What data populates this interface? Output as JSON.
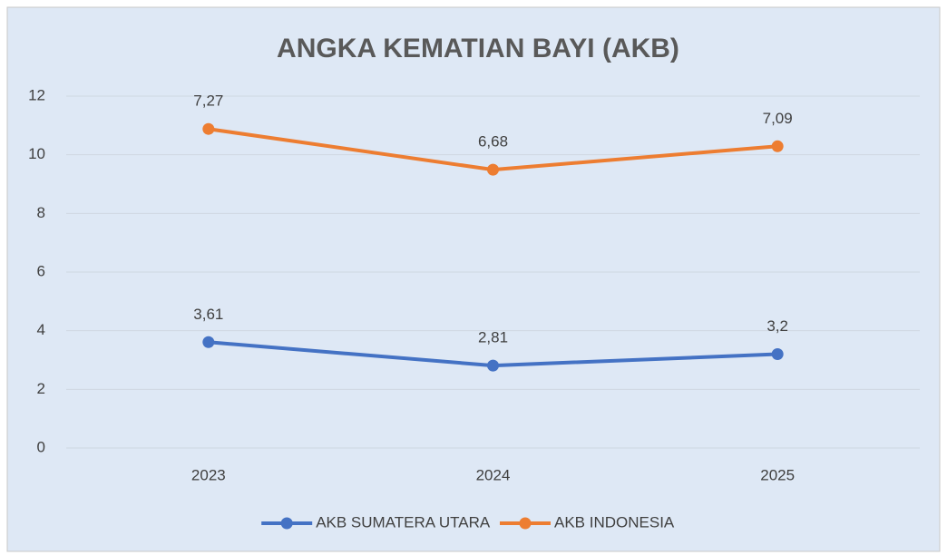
{
  "chart_data": {
    "type": "line",
    "stacked": true,
    "title": "ANGKA KEMATIAN BAYI (AKB)",
    "categories": [
      "2023",
      "2024",
      "2025"
    ],
    "series": [
      {
        "name": "AKB SUMATERA UTARA",
        "color": "#4472c4",
        "values": [
          3.61,
          2.81,
          3.2
        ],
        "value_labels": [
          "3,61",
          "2,81",
          "3,2"
        ]
      },
      {
        "name": "AKB INDONESIA",
        "color": "#ed7d31",
        "values": [
          7.27,
          6.68,
          7.09
        ],
        "value_labels": [
          "7,27",
          "6,68",
          "7,09"
        ]
      }
    ],
    "ylim": [
      0,
      12
    ],
    "yticks": [
      0,
      2,
      4,
      6,
      8,
      10,
      12
    ],
    "grid": true,
    "legend": "bottom"
  }
}
